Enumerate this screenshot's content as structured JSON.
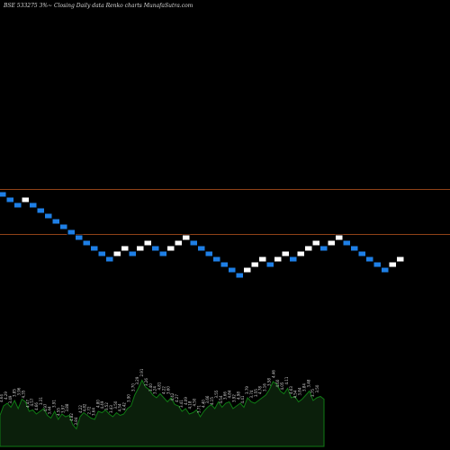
{
  "header": {
    "symbol": "BSE 533275 3%~",
    "caption": "Closing Daily data Renko charts MunafaSutra.com"
  },
  "colors": {
    "background": "#000000",
    "up_brick": "#ffffff",
    "down_brick": "#1e7fe6",
    "brick_border": "#000000",
    "level_line": "#c0581f",
    "volume_fill": "#0b1f0b",
    "volume_stroke": "#0f7a14"
  },
  "chart_data": [
    {
      "type": "renko",
      "box_size_pct": 3,
      "brick_direction": [
        "down",
        "down",
        "down",
        "up",
        "down",
        "down",
        "down",
        "down",
        "down",
        "down",
        "down",
        "down",
        "down",
        "down",
        "down",
        "up",
        "up",
        "down",
        "up",
        "up",
        "down",
        "down",
        "up",
        "up",
        "up",
        "down",
        "down",
        "down",
        "down",
        "down",
        "down",
        "down",
        "up",
        "up",
        "up",
        "down",
        "up",
        "up",
        "down",
        "up",
        "up",
        "up",
        "down",
        "up",
        "up",
        "down",
        "down",
        "down",
        "down",
        "down",
        "down",
        "up",
        "up"
      ],
      "brick_level_index": [
        6,
        5,
        4,
        5,
        4,
        3,
        2,
        1,
        0,
        -1,
        -2,
        -3,
        -4,
        -5,
        -6,
        -5,
        -4,
        -5,
        -4,
        -3,
        -4,
        -5,
        -4,
        -3,
        -2,
        -3,
        -4,
        -5,
        -6,
        -7,
        -8,
        -9,
        -8,
        -7,
        -6,
        -7,
        -6,
        -5,
        -6,
        -5,
        -4,
        -3,
        -4,
        -3,
        -2,
        -3,
        -4,
        -5,
        -6,
        -7,
        -8,
        -7,
        -6
      ],
      "reference_lines_level_index": [
        6.9,
        -1.4
      ]
    },
    {
      "type": "area",
      "series": [
        {
          "values": [
            2.3,
            3.0,
            3.2,
            2.9,
            3.4,
            2.8,
            3.5,
            3.3,
            2.6,
            2.7,
            2.4,
            2.6,
            2.8,
            2.3,
            2.1,
            2.6,
            2.0,
            2.4,
            2.2,
            2.3,
            1.6,
            1.3,
            2.2,
            2.5,
            2.3,
            2.1,
            2.0,
            2.6,
            2.5,
            2.7,
            2.4,
            2.2,
            2.5,
            2.3,
            2.4,
            2.8,
            3.0,
            3.8,
            4.3,
            4.9,
            4.4,
            4.2,
            3.8,
            3.6,
            3.9,
            3.6,
            3.3,
            3.6,
            3.1,
            3.0,
            2.6,
            2.8,
            2.4,
            2.5,
            2.7,
            2.2,
            2.6,
            2.9,
            3.1,
            2.8,
            3.3,
            2.9,
            3.2,
            3.3,
            2.8,
            3.0,
            3.2,
            2.9,
            3.6,
            3.3,
            3.2,
            3.4,
            3.6,
            3.8,
            4.2,
            4.8,
            4.6,
            4.1,
            3.9,
            4.3,
            3.6,
            3.7,
            3.3,
            3.5,
            3.8,
            4.1,
            3.4,
            3.6,
            3.7,
            3.5
          ]
        }
      ],
      "data_labels": [
        "4.64",
        "4.29",
        "3.49",
        "3.85",
        "3.96",
        "4.35",
        "4.47",
        "4.57",
        "4.66",
        "3.31",
        "4.97",
        "3.44",
        "3.91",
        "4.55",
        "3.97",
        "3.88",
        "4.82",
        "3.84",
        "4.22",
        "4.82",
        "2.72",
        "3.64",
        "4.80",
        "4.49",
        "3.52",
        "3.43",
        "3.50",
        "4.34",
        "4.42",
        "3.90",
        "3.70",
        "3.29",
        "2.91",
        "3.26",
        "3.40",
        "3.24",
        "4.81",
        "4.22",
        "3.60",
        "4.42",
        "4.27",
        "3.41",
        "4.09",
        "4.18",
        "4.50",
        "3.71",
        "4.40",
        "3.66",
        "4.15",
        "3.55",
        "4.54",
        "3.66",
        "4.84",
        "3.92",
        "4.98",
        "4.41",
        "3.79",
        "3.74",
        "3.55",
        "4.78",
        "3.16",
        "3.58",
        "4.46",
        "4.60",
        "4.05",
        "4.11",
        "4.63",
        "4.54",
        "3.84",
        "3.84",
        "3.48",
        "3.75",
        "3.50"
      ]
    }
  ]
}
